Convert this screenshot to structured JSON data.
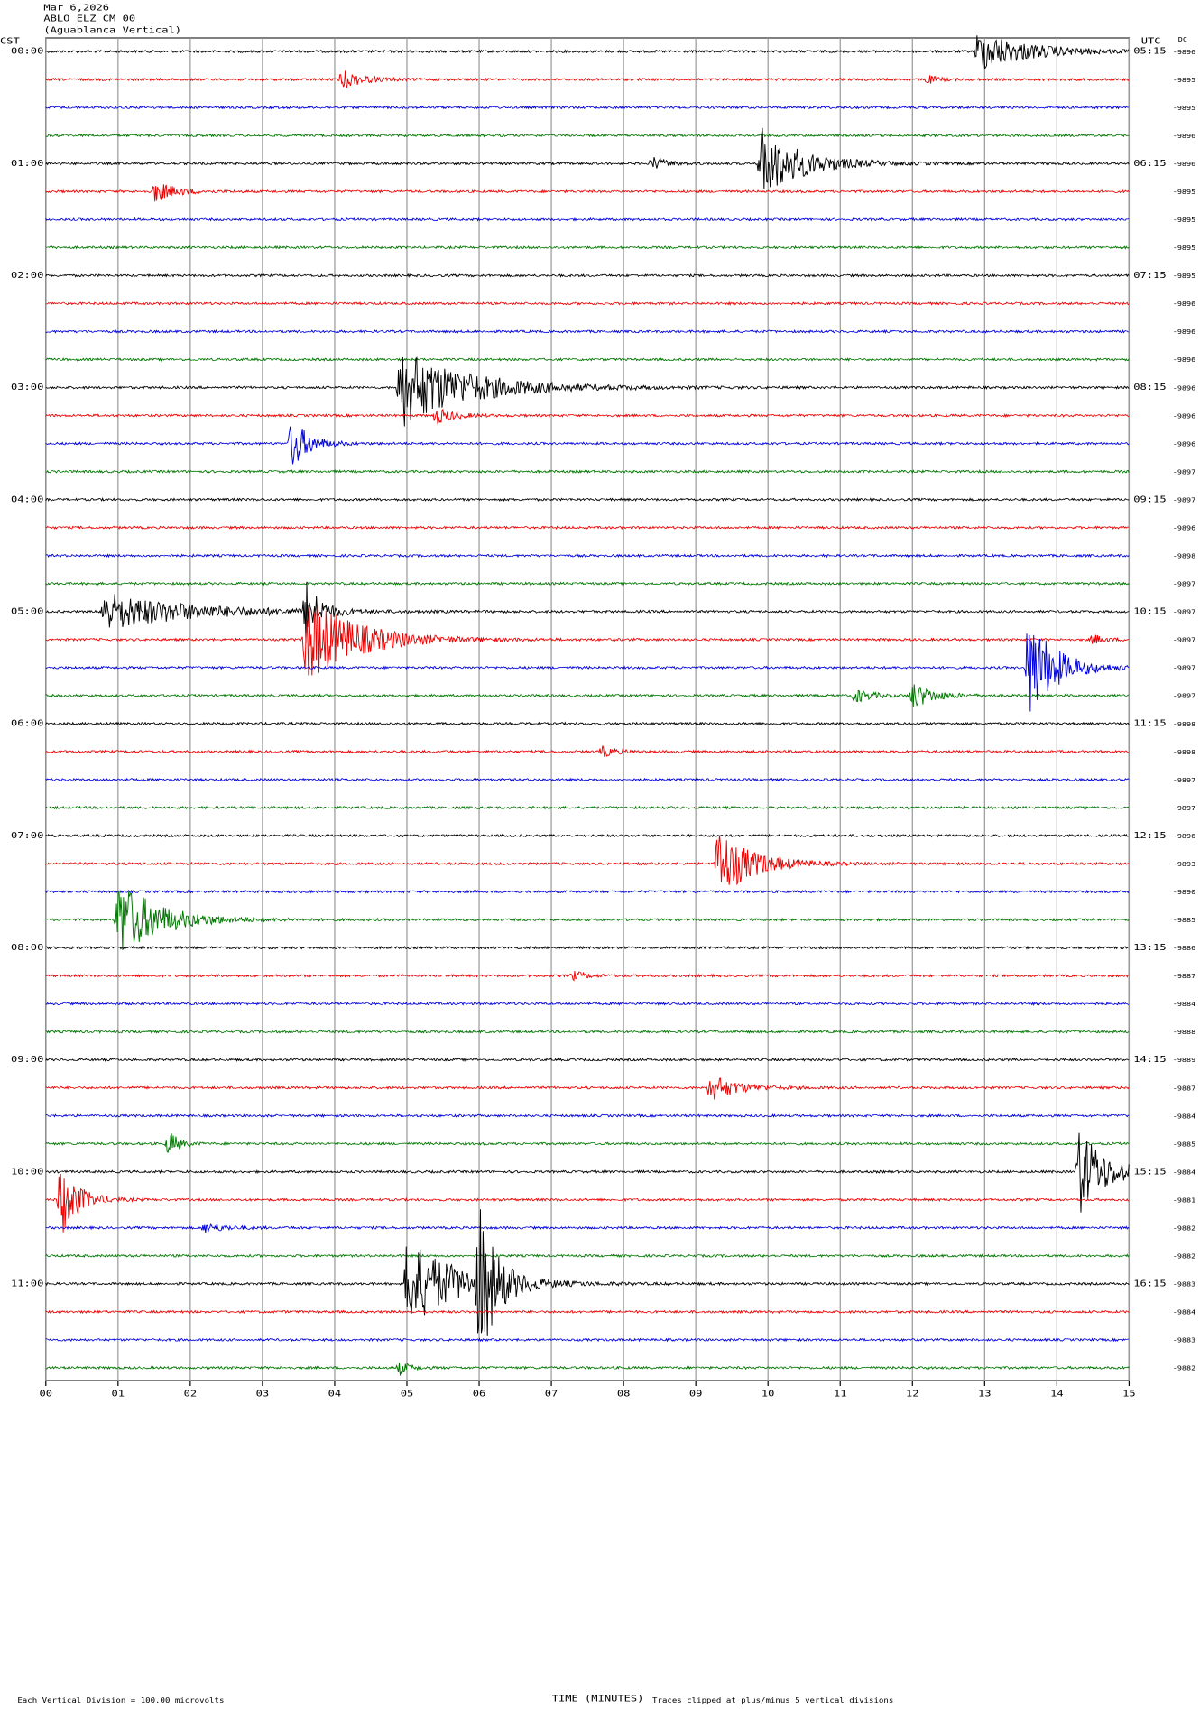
{
  "header": {
    "date": "Mar 6,2026",
    "station": "ABLO ELZ CM 00",
    "location": "(Aguablanca Vertical)"
  },
  "left_label": "CST",
  "right_label": "UTC",
  "dc_label": "DC",
  "cst_times": [
    "00:00",
    "01:00",
    "02:00",
    "03:00",
    "04:00",
    "05:00",
    "06:00",
    "07:00",
    "08:00",
    "09:00",
    "10:00",
    "11:00"
  ],
  "utc_times": [
    "05:15",
    "06:15",
    "07:15",
    "08:15",
    "09:15",
    "10:15",
    "11:15",
    "12:15",
    "13:15",
    "14:15",
    "15:15",
    "16:15"
  ],
  "dc_values": [
    -9896,
    -9895,
    -9895,
    -9896,
    -9896,
    -9895,
    -9895,
    -9895,
    -9895,
    -9896,
    -9896,
    -9896,
    -9896,
    -9896,
    -9896,
    -9897,
    -9897,
    -9896,
    -9898,
    -9897,
    -9897,
    -9897,
    -9897,
    -9897,
    -9898,
    -9898,
    -9897,
    -9897,
    -9896,
    -9893,
    -9890,
    -9885,
    -9886,
    -9887,
    -9884,
    -9888,
    -9889,
    -9887,
    -9884,
    -9885,
    -9884,
    -9881,
    -9882,
    -9882,
    -9883,
    -9884,
    -9883,
    -9882
  ],
  "x_ticks": [
    "00",
    "01",
    "02",
    "03",
    "04",
    "05",
    "06",
    "07",
    "08",
    "09",
    "10",
    "11",
    "12",
    "13",
    "14",
    "15"
  ],
  "x_axis_label": "TIME (MINUTES)",
  "footer": {
    "scale": "Each Vertical Division =  100.00 microvolts",
    "clip": "Traces clipped at plus/minus 5 vertical divisions"
  }
}
